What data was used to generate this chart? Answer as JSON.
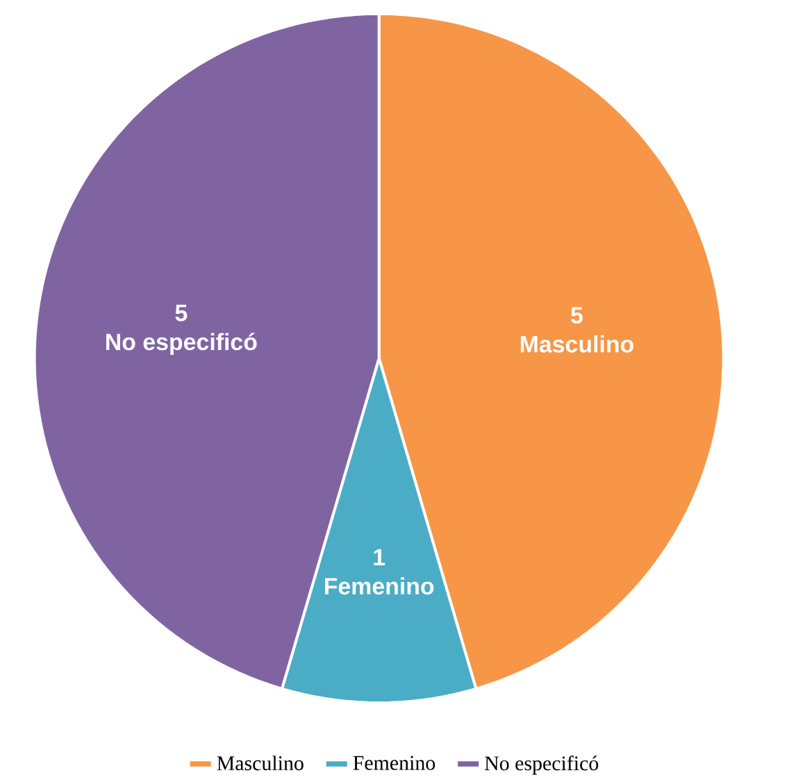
{
  "chart_data": {
    "type": "pie",
    "categories": [
      "Masculino",
      "Femenino",
      "No especificó"
    ],
    "values": [
      5,
      1,
      5
    ],
    "colors": [
      "#f79646",
      "#4bacc6",
      "#8064a2"
    ],
    "data_labels": true,
    "legend": "bottom"
  }
}
